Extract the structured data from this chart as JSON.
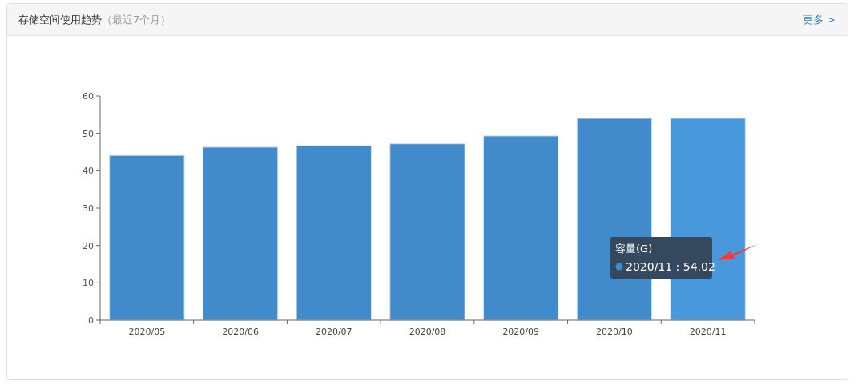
{
  "chart_data": {
    "type": "bar",
    "title": "存储空间使用趋势",
    "subtitle": "（最近7个月）",
    "categories": [
      "2020/05",
      "2020/06",
      "2020/07",
      "2020/08",
      "2020/09",
      "2020/10",
      "2020/11"
    ],
    "series": [
      {
        "name": "容量(G)",
        "color": "#428bca",
        "colors": [
          "#428bca",
          "#428bca",
          "#428bca",
          "#428bca",
          "#428bca",
          "#428bca",
          "#4a98dc"
        ],
        "values": [
          44.1,
          46.3,
          46.7,
          47.2,
          49.3,
          54.0,
          54.02
        ]
      }
    ],
    "ylim": [
      0,
      60
    ],
    "yticks": [
      0,
      10,
      20,
      30,
      40,
      50,
      60
    ],
    "grid": false,
    "annotations": [
      "更多 >",
      "2020/11 : 54.02"
    ]
  }
}
